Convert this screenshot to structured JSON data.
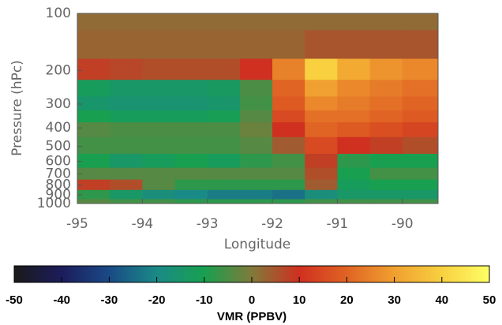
{
  "chart_data": {
    "type": "heatmap",
    "x": [
      -94.75,
      -94.25,
      -93.75,
      -93.25,
      -92.75,
      -92.25,
      -91.75,
      -91.25,
      -90.75,
      -90.25,
      -89.75
    ],
    "y": [
      100,
      150,
      200,
      250,
      300,
      350,
      400,
      500,
      600,
      700,
      800,
      900,
      1000
    ],
    "z": [
      [
        2,
        2,
        2,
        2,
        2,
        2,
        2,
        2,
        2,
        2,
        2
      ],
      [
        3,
        3,
        3,
        3,
        3,
        3,
        3,
        5,
        5,
        5,
        5
      ],
      [
        8,
        7,
        6,
        6,
        6,
        10,
        25,
        40,
        32,
        28,
        26
      ],
      [
        -12,
        -14,
        -14,
        -14,
        -13,
        -5,
        20,
        30,
        26,
        24,
        22
      ],
      [
        -15,
        -16,
        -16,
        -16,
        -15,
        -6,
        18,
        26,
        24,
        22,
        20
      ],
      [
        -10,
        -12,
        -12,
        -12,
        -11,
        -4,
        15,
        22,
        22,
        20,
        18
      ],
      [
        -4,
        -5,
        -5,
        -5,
        -5,
        -2,
        10,
        20,
        18,
        16,
        14
      ],
      [
        -6,
        -6,
        -6,
        -6,
        -6,
        -4,
        4,
        15,
        10,
        8,
        6
      ],
      [
        -10,
        -14,
        -12,
        -10,
        -12,
        -8,
        -6,
        8,
        -8,
        -10,
        -10
      ],
      [
        -4,
        -4,
        -4,
        -4,
        -4,
        -4,
        -4,
        6,
        -10,
        -6,
        -6
      ],
      [
        8,
        6,
        -4,
        -8,
        -8,
        -8,
        -8,
        4,
        -12,
        -10,
        -10
      ],
      [
        -8,
        -14,
        -18,
        -20,
        -22,
        -22,
        -24,
        -18,
        -14,
        -14,
        -14
      ],
      [
        -4,
        -6,
        -6,
        -8,
        -8,
        -8,
        -8,
        -6,
        -6,
        -6,
        -6
      ]
    ],
    "xlim": [
      -95,
      -89.45
    ],
    "xticks": [
      -95,
      -94,
      -93,
      -92,
      -91,
      -90
    ],
    "ylim": [
      100,
      1000
    ],
    "yticks": [
      100,
      200,
      300,
      400,
      500,
      600,
      700,
      800,
      900,
      1000
    ],
    "ylog": true,
    "xlabel": "Longitude",
    "ylabel": "Pressure (hPc)",
    "colorbar": {
      "label": "VMR (PPBV)",
      "lim": [
        -50,
        50
      ],
      "ticks": [
        -50,
        -40,
        -30,
        -20,
        -10,
        0,
        10,
        20,
        30,
        40,
        50
      ],
      "colormap": [
        {
          "value": -50,
          "color": "#1a1a1a"
        },
        {
          "value": -40,
          "color": "#1c1c5c"
        },
        {
          "value": -30,
          "color": "#1a4a86"
        },
        {
          "value": -20,
          "color": "#1a8a86"
        },
        {
          "value": -10,
          "color": "#18a050"
        },
        {
          "value": 0,
          "color": "#807a3a"
        },
        {
          "value": 10,
          "color": "#d03020"
        },
        {
          "value": 20,
          "color": "#e06424"
        },
        {
          "value": 30,
          "color": "#f0a030"
        },
        {
          "value": 40,
          "color": "#f8d040"
        },
        {
          "value": 50,
          "color": "#ffff66"
        }
      ]
    }
  }
}
